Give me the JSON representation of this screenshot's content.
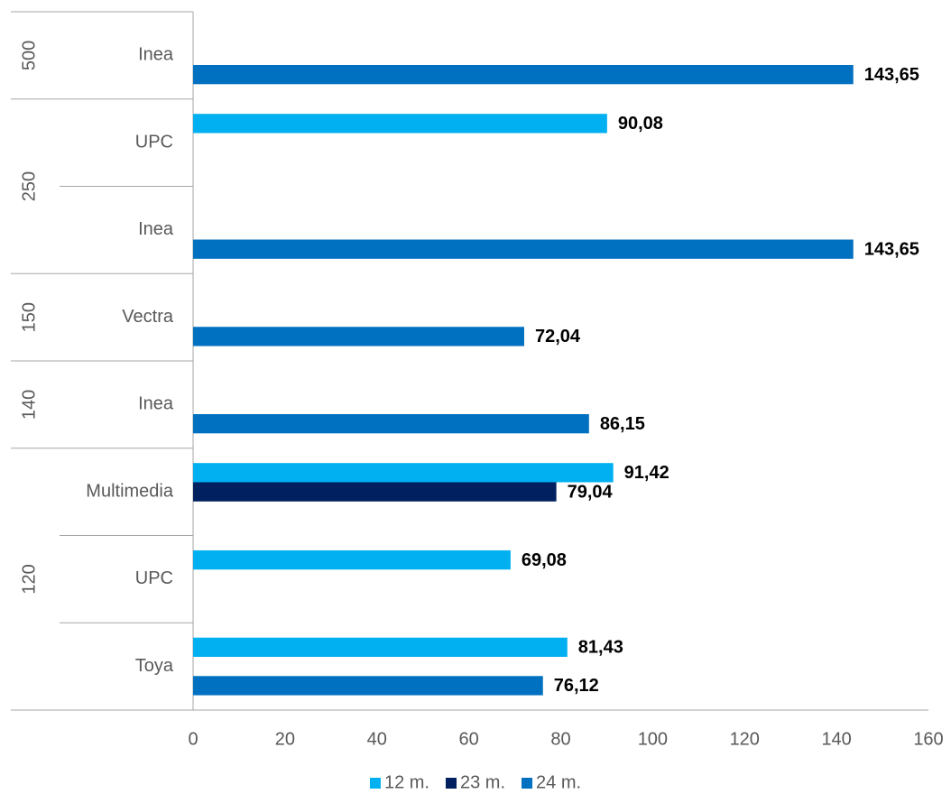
{
  "chart_data": {
    "type": "bar",
    "orientation": "horizontal",
    "groups": [
      {
        "name": "500",
        "categories": [
          "Inea"
        ]
      },
      {
        "name": "250",
        "categories": [
          "UPC",
          "Inea"
        ]
      },
      {
        "name": "150",
        "categories": [
          "Vectra"
        ]
      },
      {
        "name": "140",
        "categories": [
          "Inea"
        ]
      },
      {
        "name": "120",
        "categories": [
          "Multimedia",
          "UPC",
          "Toya"
        ]
      }
    ],
    "series": [
      {
        "name": "12 m.",
        "color": "#00b0f0",
        "values": [
          null,
          90.08,
          null,
          null,
          null,
          91.42,
          69.08,
          81.43
        ],
        "value_labels": [
          null,
          "90,08",
          null,
          null,
          null,
          "91,42",
          "69,08",
          "81,43"
        ]
      },
      {
        "name": "23 m.",
        "color": "#002060",
        "values": [
          null,
          null,
          null,
          null,
          null,
          79.04,
          null,
          null
        ],
        "value_labels": [
          null,
          null,
          null,
          null,
          null,
          "79,04",
          null,
          null
        ]
      },
      {
        "name": "24 m.",
        "color": "#0070c0",
        "values": [
          143.65,
          null,
          143.65,
          72.04,
          86.15,
          null,
          null,
          76.12
        ],
        "value_labels": [
          "143,65",
          null,
          "143,65",
          "72,04",
          "86,15",
          null,
          null,
          "76,12"
        ]
      }
    ],
    "xlim": [
      0,
      160
    ],
    "xticks": [
      0,
      20,
      40,
      60,
      80,
      100,
      120,
      140,
      160
    ],
    "legend": "bottom"
  }
}
